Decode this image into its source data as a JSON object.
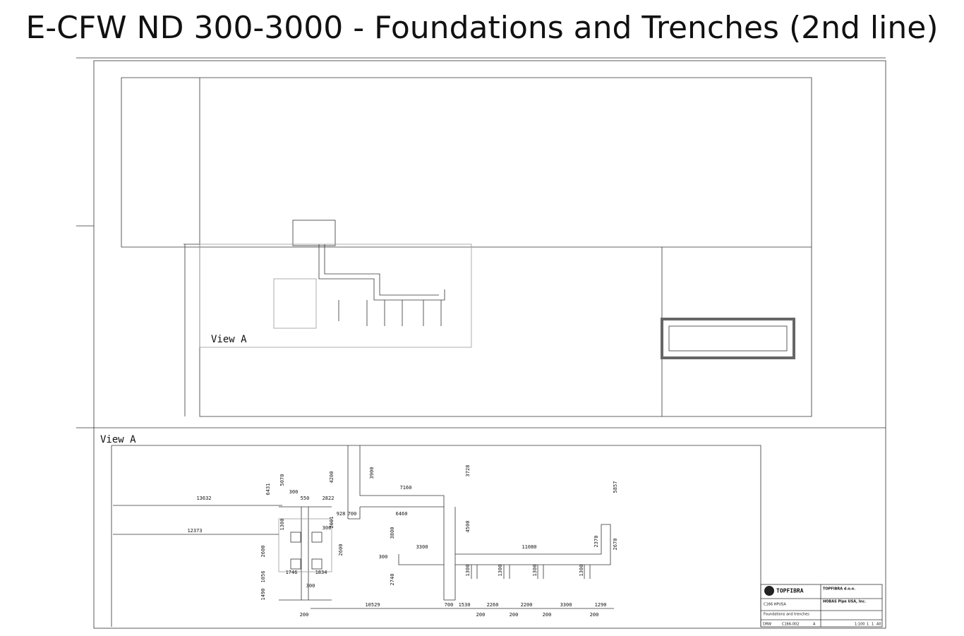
{
  "title": "E-CFW ND 300-3000 - Foundations and Trenches (2nd line)",
  "plan": {
    "view_label": "View A"
  },
  "view_a": {
    "label": "View A",
    "dimensions": [
      "13632",
      "12373",
      "6431",
      "5070",
      "300",
      "550",
      "2822",
      "4200",
      "3900",
      "3728",
      "7160",
      "5857",
      "928",
      "700",
      "6460",
      "2001",
      "4500",
      "1300",
      "300",
      "3800",
      "2600",
      "2600",
      "3300",
      "11080",
      "2370",
      "2670",
      "300",
      "1746",
      "1834",
      "1300",
      "1300",
      "1300",
      "1300",
      "2740",
      "1056",
      "300",
      "1490",
      "10529",
      "700",
      "1530",
      "2260",
      "2200",
      "3300",
      "1290",
      "200",
      "200",
      "200",
      "200",
      "200"
    ]
  },
  "title_block": {
    "company": "TOPFIBRA",
    "company_full": "TOPFIBRA d.o.o.",
    "client": "HOBAS Pipe USA, Inc.",
    "project": "C166 HPUSA",
    "drawing_title": "Foundations and trenches",
    "type": "DRW",
    "number": "C166-002",
    "revision": "A",
    "scale": "1:100",
    "sheet": "1",
    "sheets": "1",
    "format": "A0"
  }
}
